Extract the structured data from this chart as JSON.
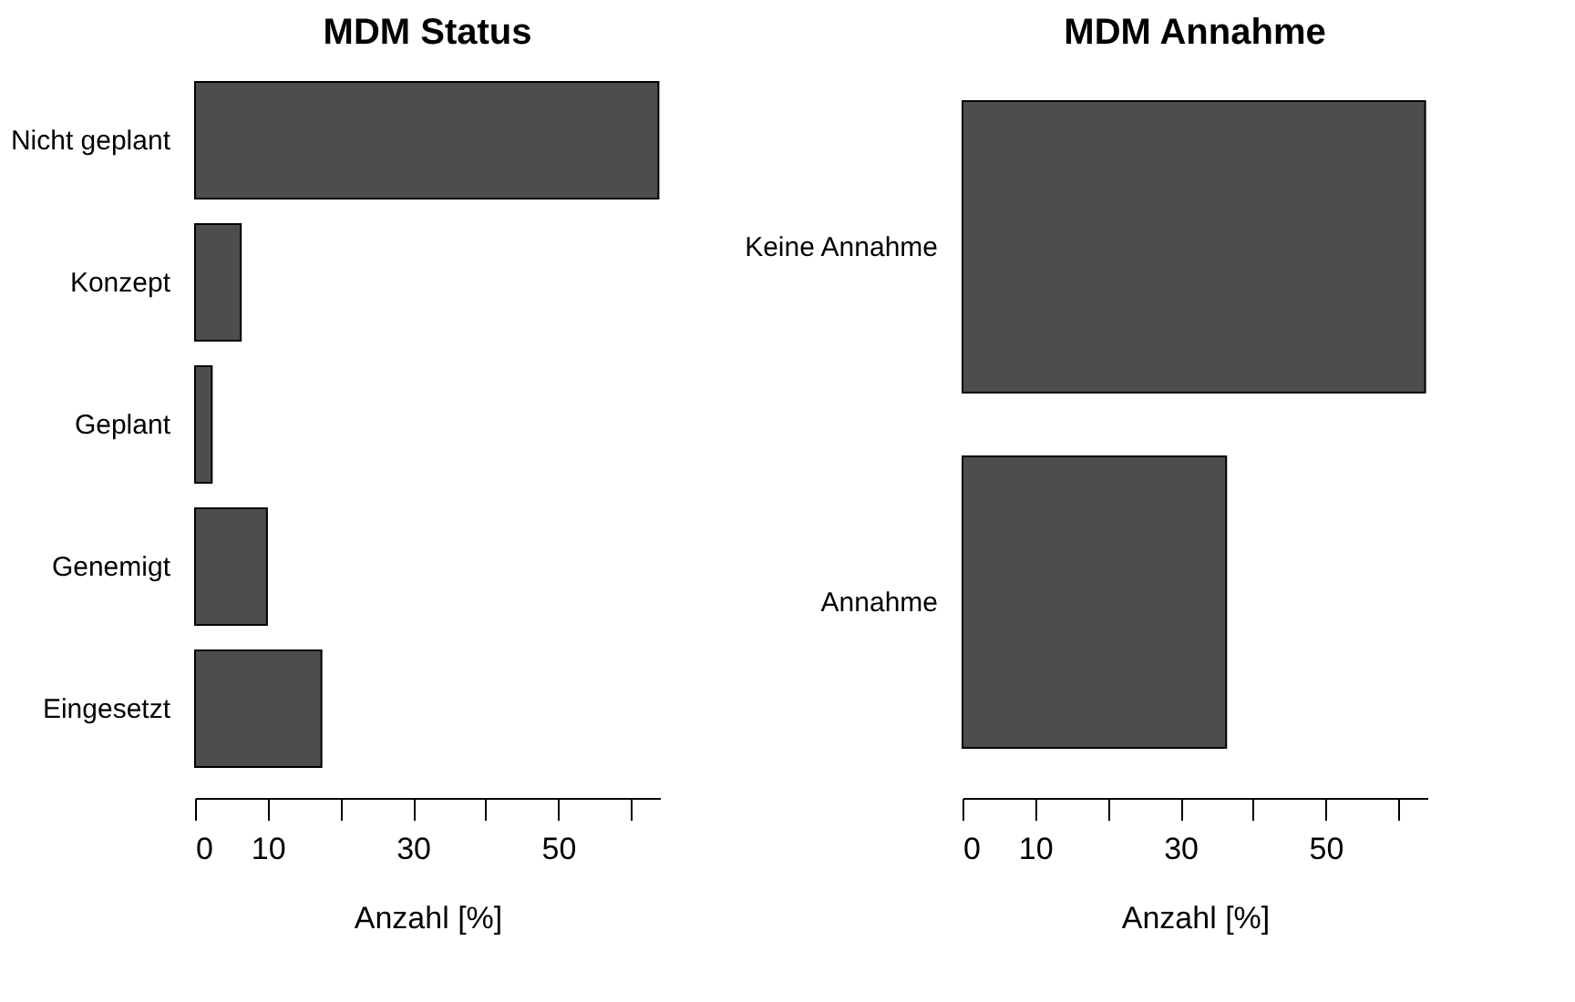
{
  "chart_data": [
    {
      "type": "bar",
      "orientation": "horizontal",
      "title": "MDM Status",
      "xlabel": "Anzahl [%]",
      "categories": [
        "Nicht geplant",
        "Konzept",
        "Geplant",
        "Genemigt",
        "Eingesetzt"
      ],
      "values": [
        63.8,
        6.3,
        2.3,
        9.9,
        17.4
      ],
      "color": "#4d4d4d",
      "xlim": [
        0,
        64
      ],
      "xticks": [
        0,
        10,
        {
          "value": 20,
          "label": null
        },
        30,
        {
          "value": 40,
          "label": null
        },
        50,
        {
          "value": 60,
          "label": null
        }
      ],
      "grid": false
    },
    {
      "type": "bar",
      "orientation": "horizontal",
      "title": "MDM Annahme",
      "xlabel": "Anzahl [%]",
      "categories": [
        "Keine Annahme",
        "Annahme"
      ],
      "values": [
        63.7,
        36.3
      ],
      "color": "#4d4d4d",
      "xlim": [
        0,
        64
      ],
      "xticks": [
        0,
        10,
        {
          "value": 20,
          "label": null
        },
        30,
        {
          "value": 40,
          "label": null
        },
        50,
        {
          "value": 60,
          "label": null
        }
      ],
      "grid": false
    }
  ]
}
